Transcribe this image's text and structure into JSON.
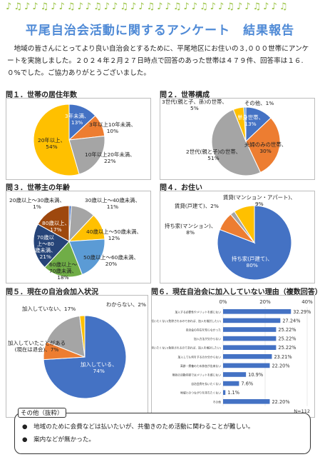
{
  "decoration": {
    "notes": "♪♫♪♪♫♪♪♫♪♪♫♪♪♫♪♪♫♪♪♫♪♪♫♪♪♫♪♪♫♪♪♫"
  },
  "title": "平尾自治会活動に関するアンケート　結果報告",
  "intro": "　地域の皆さんにとってより良い自治会とするために、平尾地区にお住いの３,０００世帯にアンケートを実施しました。２０２４年２月２７日時点で回答のあった世帯は４７９件、回答率は１６.０%でした。ご協力ありがとうございました。",
  "q1": {
    "label": "問１．世帯の居住年数",
    "chart_data": {
      "type": "pie",
      "categories": [
        "3年未満",
        "3年以上10年未満",
        "10年以上20年未満",
        "20年以上"
      ],
      "values": [
        13,
        10,
        22,
        54
      ],
      "colors": [
        "#4472c4",
        "#ed7d31",
        "#a5a5a5",
        "#ffc000"
      ]
    },
    "labels": [
      "3年未満、",
      "13%",
      "3年以上10年未満、",
      "10%",
      "10年以上20年未満、",
      "22%",
      "20年以上、",
      "54%"
    ]
  },
  "q2": {
    "label": "問２．世帯構成",
    "chart_data": {
      "type": "pie",
      "categories": [
        "単身世帯",
        "夫婦のみの世帯",
        "2世代(親と子)の世帯",
        "3世代(親と子、孫)の世帯",
        "その他"
      ],
      "values": [
        13,
        30,
        51,
        5,
        1
      ],
      "colors": [
        "#4472c4",
        "#ed7d31",
        "#a5a5a5",
        "#ffc000",
        "#5b9bd5"
      ]
    },
    "labels": [
      "単身世帯、",
      "13%",
      "夫婦のみの世帯、",
      "30%",
      "2世代(親と子)の世帯、",
      "51%",
      "3世代(親と子、孫)の世帯、",
      "5%",
      "その他、1%"
    ]
  },
  "q3": {
    "label": "問３．世帯主の年齢",
    "chart_data": {
      "type": "pie",
      "categories": [
        "20歳以上～30歳未満",
        "30歳以上～40歳未満",
        "40歳以上～50歳未満",
        "50歳以上～60歳未満",
        "60歳以上～70歳未満",
        "70歳以上～80歳未満",
        "80歳以上"
      ],
      "values": [
        1,
        11,
        12,
        20,
        18,
        21,
        17
      ],
      "colors": [
        "#4472c4",
        "#a5a5a5",
        "#ffc000",
        "#5b9bd5",
        "#70ad47",
        "#264478",
        "#9e480e"
      ]
    },
    "labels": [
      "20歳以上～30歳未満、",
      "1%",
      "30歳以上～40歳未満、",
      "11%",
      "40歳以上～50歳未満、",
      "12%",
      "50歳以上～60歳未満、",
      "20%",
      "60歳以上～",
      "70歳未満、",
      "18%",
      "70歳以",
      "上～80",
      "歳未満、",
      "21%",
      "80歳以上、",
      "17%"
    ]
  },
  "q4": {
    "label": "問４．お住い",
    "chart_data": {
      "type": "pie",
      "categories": [
        "持ち家(戸建て)",
        "持ち家(マンション)",
        "賃貸(戸建て)",
        "賃貸(マンション・アパート)"
      ],
      "values": [
        80,
        8,
        2,
        9
      ],
      "colors": [
        "#4472c4",
        "#ed7d31",
        "#a5a5a5",
        "#ffc000"
      ]
    },
    "labels": [
      "持ち家(戸建て)、",
      "80%",
      "持ち家(マンション)、",
      "8%",
      "賃貸(戸建て)、2%",
      "賃貸(マンション・アパート)、",
      "9%"
    ]
  },
  "q5": {
    "label": "問５．現在の自治会加入状況",
    "chart_data": {
      "type": "pie",
      "categories": [
        "加入している",
        "加入していたことがある(現在は退会)",
        "加入していない",
        "わからない"
      ],
      "values": [
        74,
        7,
        17,
        2
      ],
      "colors": [
        "#4472c4",
        "#ed7d31",
        "#a5a5a5",
        "#ffc000"
      ]
    },
    "labels": [
      "加入している、",
      "74%",
      "加入していたことがある",
      "(現在は退会)、7%",
      "加入していない、17%",
      "わからない、2%"
    ]
  },
  "q6": {
    "label": "問６．現在自治会に加入していない理由（複数回答）",
    "chart_data": {
      "type": "bar",
      "orientation": "horizontal",
      "categories": [
        "加入する必要性やメリットを感じない",
        "班長を担いたくない(免除されるのであれば、加入を検討したい)",
        "自治会の存在を知らなかった",
        "加入方法が分からない",
        "輪番を担いたくない(免除されるのであれば、加入を検討したい)",
        "加入しても何をするのか分からない",
        "高齢・療養のため参加が出来ない",
        "現状の活動内容ではメリットを感じない",
        "自治会費を払いたくない",
        "地域とのつながりを持ちたくない",
        "その他"
      ],
      "values": [
        32.29,
        27.24,
        25.22,
        25.22,
        25.22,
        23.21,
        22.2,
        10.9,
        7.6,
        1.1,
        22.2
      ],
      "value_labels": [
        "32.29%",
        "27.24%",
        "25.22%",
        "25.22%",
        "25.22%",
        "23.21%",
        "22.20%",
        "10.9%",
        "7.6%",
        "1.1%",
        "22.20%"
      ],
      "xlim": [
        0,
        40
      ],
      "ticks": [
        "0%",
        "20%",
        "40%"
      ],
      "n_label": "N=112",
      "color": "#4472c4"
    }
  },
  "other": {
    "title": "その他（抜粋）",
    "items": [
      "●　地域のために会費などは払いたいが、共働きのため活動に関わることが難しい。",
      "●　案内などが無かった。"
    ]
  }
}
